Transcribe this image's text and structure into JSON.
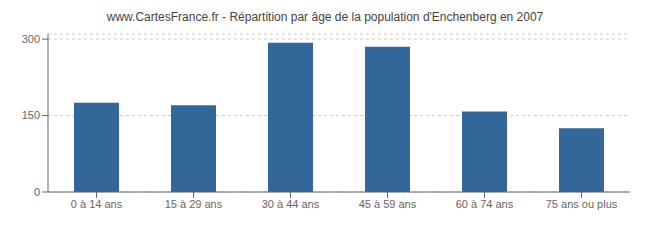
{
  "chart_data": {
    "type": "bar",
    "title": "www.CartesFrance.fr - Répartition par âge de la population d'Enchenberg en 2007",
    "categories": [
      "0 à 14 ans",
      "15 à 29 ans",
      "30 à 44 ans",
      "45 à 59 ans",
      "60 à 74 ans",
      "75 ans ou plus"
    ],
    "values": [
      175,
      170,
      293,
      285,
      158,
      125
    ],
    "color": "#336699",
    "ylim": [
      0,
      310
    ],
    "yticks": [
      0,
      150,
      300
    ],
    "grid": true
  }
}
